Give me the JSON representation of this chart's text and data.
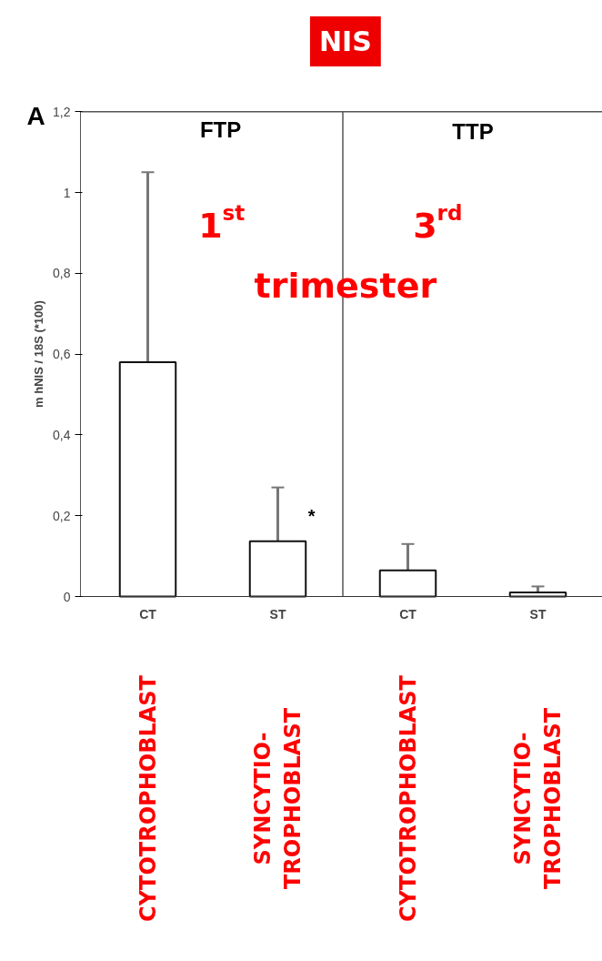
{
  "chart_data": {
    "type": "bar",
    "title": "NIS",
    "categories": [
      "CT",
      "ST",
      "CT",
      "ST"
    ],
    "values": [
      0.58,
      0.137,
      0.065,
      0.01
    ],
    "errors": [
      [
        0.58,
        1.05
      ],
      [
        0.137,
        0.27
      ],
      [
        0.065,
        0.13
      ],
      [
        0.01,
        0.025
      ]
    ],
    "color": "#ffffff",
    "ylabel": "m hNIS / 18S (*100)",
    "ylim": [
      0,
      1.2
    ],
    "yticks": [
      0,
      {
        "value": 0.2,
        "label": "0,2"
      },
      {
        "value": 0.4,
        "label": "0,4"
      },
      {
        "value": 0.6,
        "label": "0,6"
      },
      {
        "value": 0.8,
        "label": "0,8"
      },
      1,
      {
        "value": 1.2,
        "label": "1,2"
      }
    ],
    "annotations": [
      "A",
      "FTP",
      "TTP",
      "1$^{st}$",
      "3$^{rd}$",
      "trimester",
      "*",
      "CYTOTROPHOBLAST",
      "SYNCYTIO-\nTROPHOBLAST",
      "CYTOTROPHOBLAST",
      "SYNCYTIO-\nTROPHOBLAST"
    ]
  }
}
